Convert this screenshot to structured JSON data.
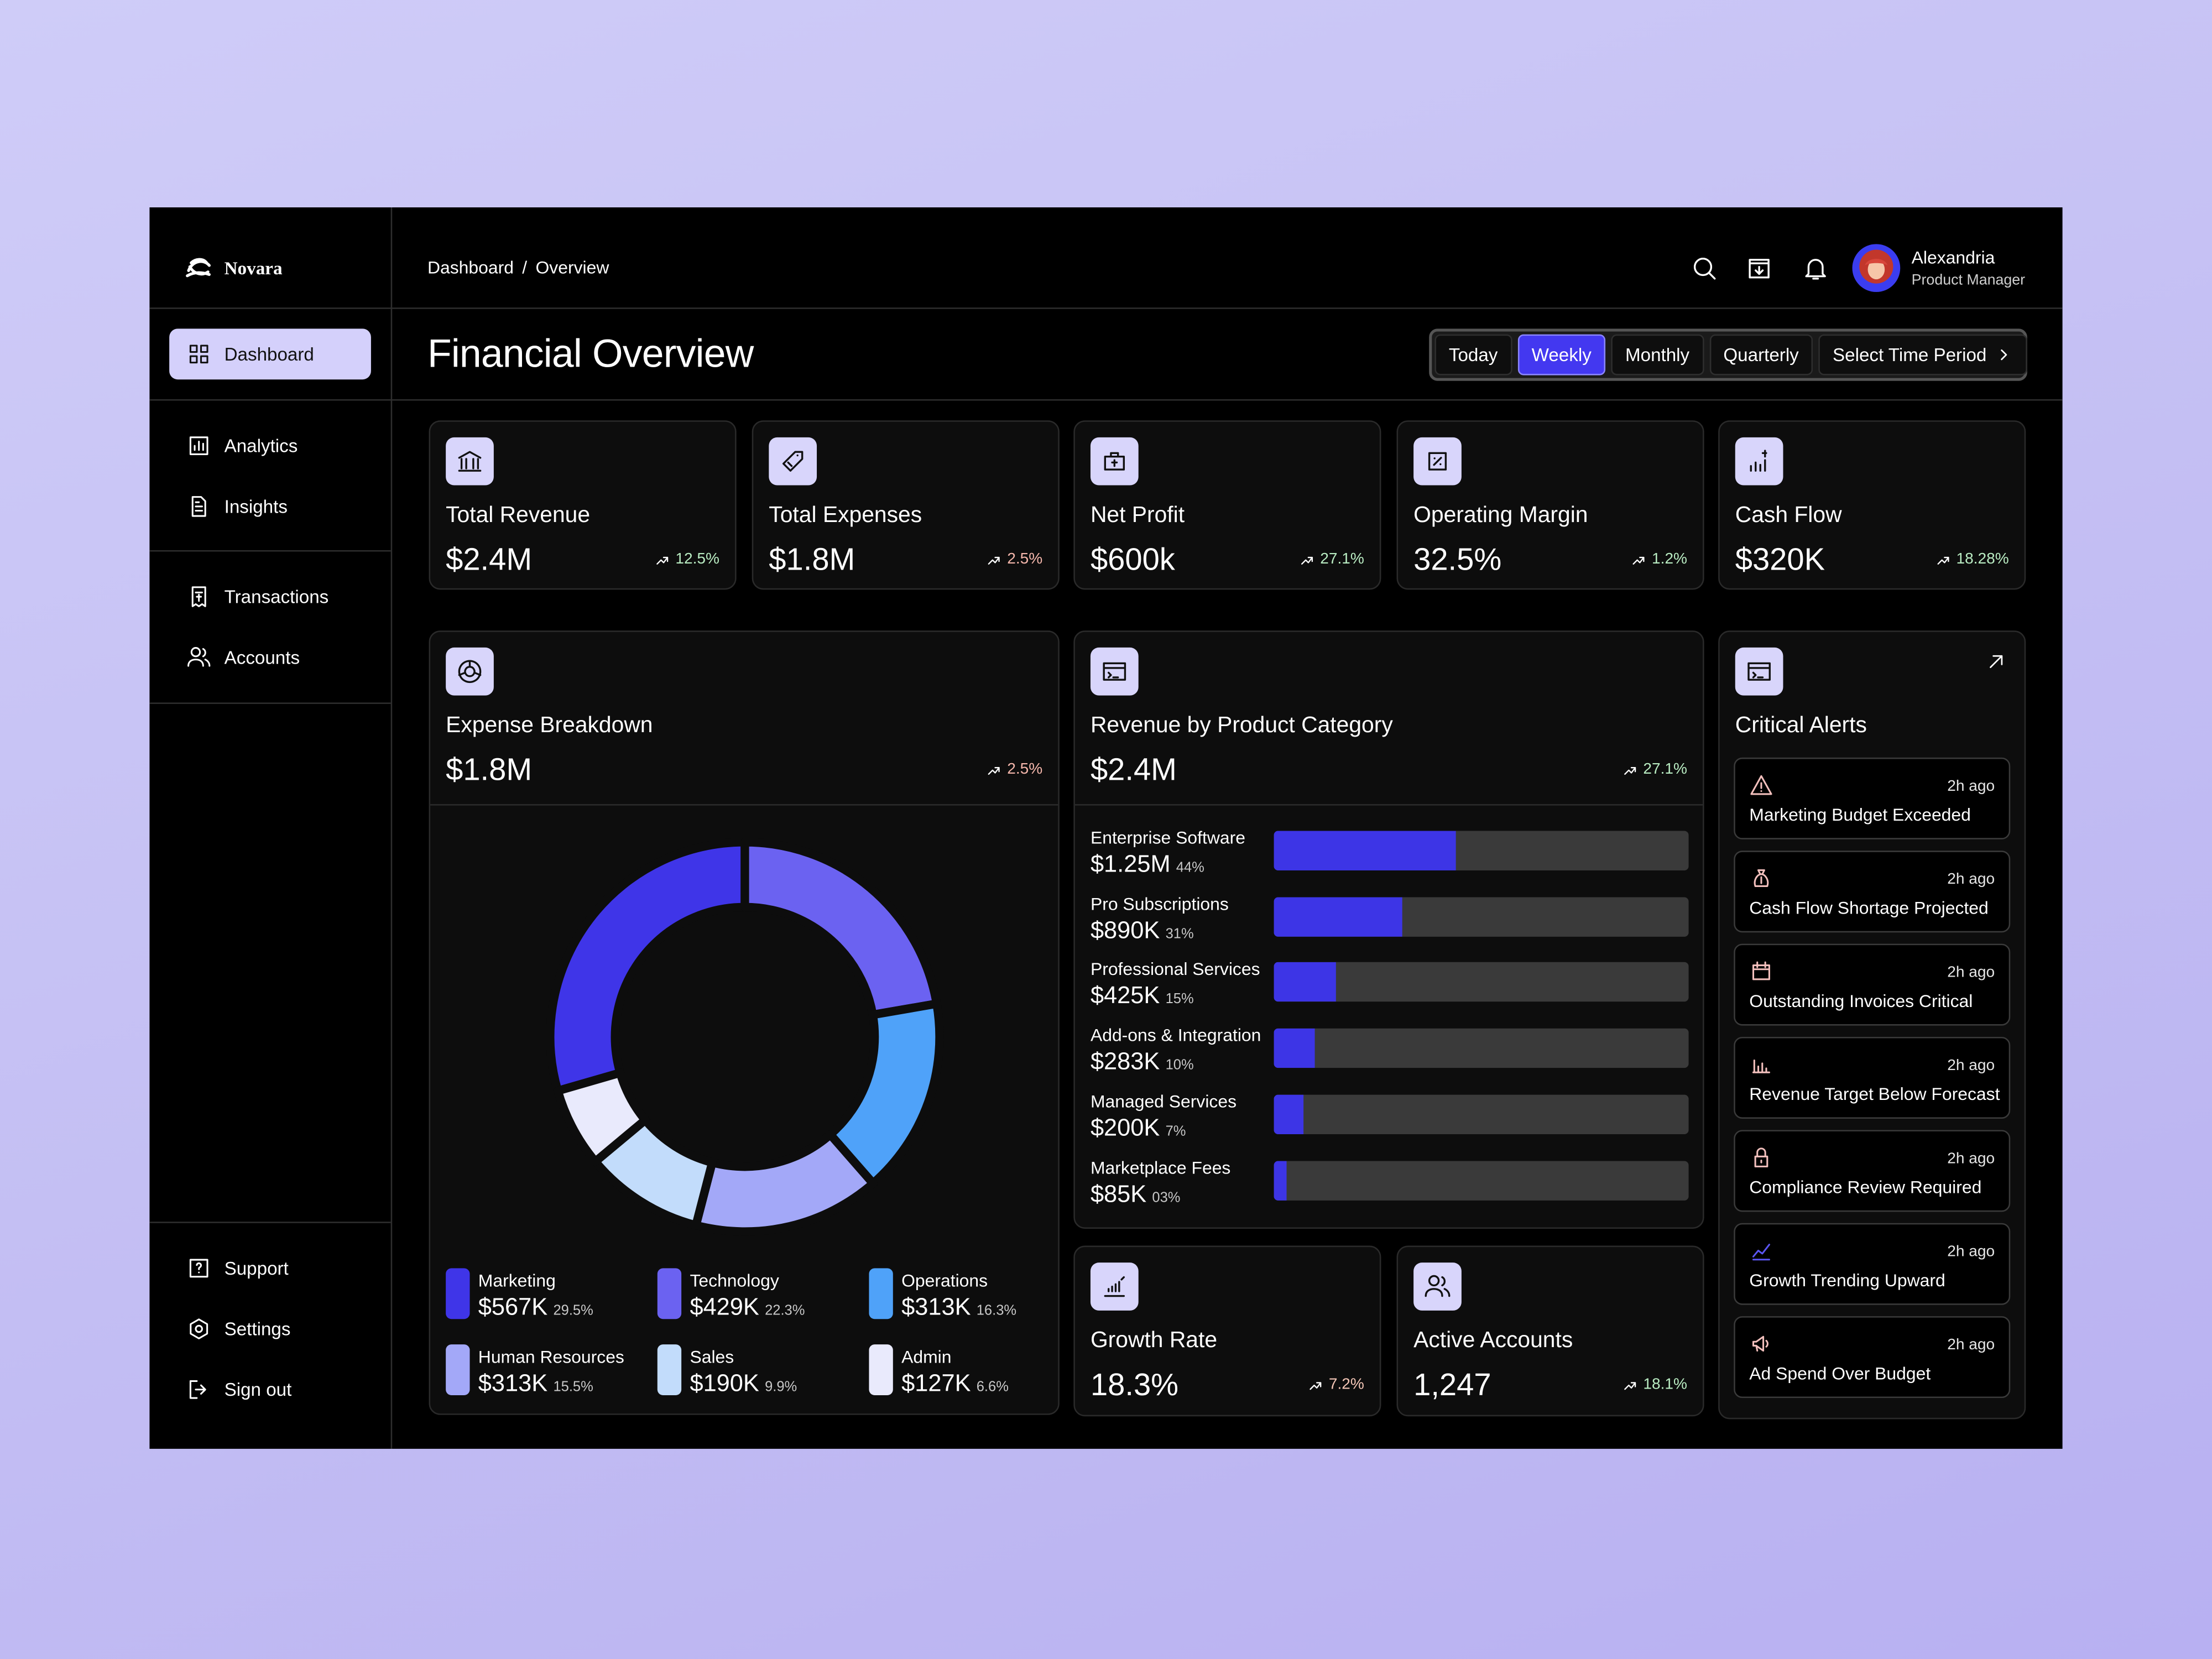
{
  "sidebar": {
    "brand": "Novara",
    "nav": [
      "Dashboard",
      "Analytics",
      "Insights",
      "Transactions",
      "Accounts"
    ],
    "active_index": 0,
    "footer": [
      "Support",
      "Settings",
      "Sign out"
    ]
  },
  "breadcrumb": {
    "items": [
      "Dashboard",
      "Overview"
    ],
    "separator": "/"
  },
  "user": {
    "name": "Alexandria",
    "role": "Product Manager"
  },
  "page_title": "Financial Overview",
  "time_filters": {
    "options": [
      "Today",
      "Weekly",
      "Monthly",
      "Quarterly",
      "Select Time Period"
    ],
    "selected_index": 1
  },
  "kpis": [
    {
      "label": "Total Revenue",
      "value": "$2.4M",
      "change": "12.5%",
      "change_color": "#b9ecc2"
    },
    {
      "label": "Total Expenses",
      "value": "$1.8M",
      "change": "2.5%",
      "change_color": "#f4b6ab"
    },
    {
      "label": "Net Profit",
      "value": "$600k",
      "change": "27.1%",
      "change_color": "#b9ecc2"
    },
    {
      "label": "Operating Margin",
      "value": "32.5%",
      "change": "1.2%",
      "change_color": "#b9ecc2"
    },
    {
      "label": "Cash Flow",
      "value": "$320K",
      "change": "18.28%",
      "change_color": "#b9ecc2"
    }
  ],
  "expense_breakdown": {
    "type": "donut",
    "title": "Expense Breakdown",
    "total": "$1.8M",
    "change": "2.5%",
    "change_color": "#f4b6ab",
    "categories": [
      "Marketing",
      "Technology",
      "Operations",
      "Human Resources",
      "Sales",
      "Admin"
    ],
    "amounts": [
      "$567K",
      "$429K",
      "$313K",
      "$313K",
      "$190K",
      "$127K"
    ],
    "values": [
      29.5,
      22.3,
      16.3,
      15.5,
      9.9,
      6.6
    ],
    "value_labels": [
      "29.5%",
      "22.3%",
      "16.3%",
      "15.5%",
      "9.9%",
      "6.6%"
    ],
    "colors": [
      "#3f35e8",
      "#6b62f1",
      "#4fa2f9",
      "#a3a8f8",
      "#c2dcfb",
      "#e9eafc"
    ]
  },
  "revenue_by_category": {
    "type": "bar",
    "title": "Revenue by Product Category",
    "total": "$2.4M",
    "change": "27.1%",
    "change_color": "#b9ecc2",
    "categories": [
      "Enterprise Software",
      "Pro Subscriptions",
      "Professional Services",
      "Add-ons & Integration",
      "Managed Services",
      "Marketplace Fees"
    ],
    "amounts": [
      "$1.25M",
      "$890K",
      "$425K",
      "$283K",
      "$200K",
      "$85K"
    ],
    "values": [
      44,
      31,
      15,
      10,
      7,
      3
    ],
    "value_labels": [
      "44%",
      "31%",
      "15%",
      "10%",
      "7%",
      "03%"
    ],
    "xlim": [
      0,
      100
    ],
    "color": "#3d35e6",
    "track_color": "#3a3a3a"
  },
  "secondary_kpis": [
    {
      "label": "Growth Rate",
      "value": "18.3%",
      "change": "7.2%",
      "change_color": "#f4c6b6"
    },
    {
      "label": "Active Accounts",
      "value": "1,247",
      "change": "18.1%",
      "change_color": "#b9ecc2"
    }
  ],
  "critical_alerts": {
    "title": "Critical Alerts",
    "items": [
      {
        "title": "Marketing Budget Exceeded",
        "time": "2h ago"
      },
      {
        "title": "Cash Flow Shortage Projected",
        "time": "2h ago"
      },
      {
        "title": "Outstanding Invoices Critical",
        "time": "2h ago"
      },
      {
        "title": "Revenue Target Below Forecast",
        "time": "2h ago"
      },
      {
        "title": "Compliance Review Required",
        "time": "2h ago"
      },
      {
        "title": "Growth Trending Upward",
        "time": "2h ago"
      },
      {
        "title": "Ad Spend Over Budget",
        "time": "2h ago"
      }
    ]
  }
}
